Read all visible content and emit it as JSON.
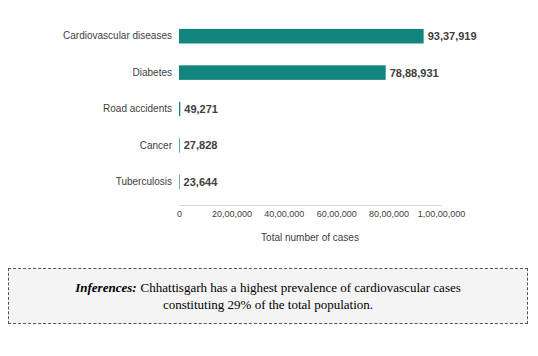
{
  "chart_data": {
    "type": "bar",
    "orientation": "horizontal",
    "categories": [
      "Cardiovascular diseases",
      "Diabetes",
      "Road accidents",
      "Cancer",
      "Tuberculosis"
    ],
    "values": [
      9337919,
      7888931,
      49271,
      27828,
      23644
    ],
    "value_labels": [
      "93,37,919",
      "78,88,931",
      "49,271",
      "27,828",
      "23,644"
    ],
    "data_labels": true,
    "color": "#12857f",
    "x_label": "Total number of cases",
    "xlim": [
      0,
      10000000
    ],
    "xticks": [
      0,
      {
        "value": 2000000,
        "label": "20,00,000"
      },
      {
        "value": 4000000,
        "label": "40,00,000"
      },
      {
        "value": 6000000,
        "label": "60,00,000"
      },
      {
        "value": 8000000,
        "label": "80,00,000"
      },
      {
        "value": 10000000,
        "label": "1,00,00,000"
      }
    ],
    "grid": false,
    "annotations": [
      {
        "heading": "Inferences:",
        "text": "Chhattisgarh has a highest prevalence of cardiovascular cases constituting 29% of the total population."
      }
    ]
  }
}
